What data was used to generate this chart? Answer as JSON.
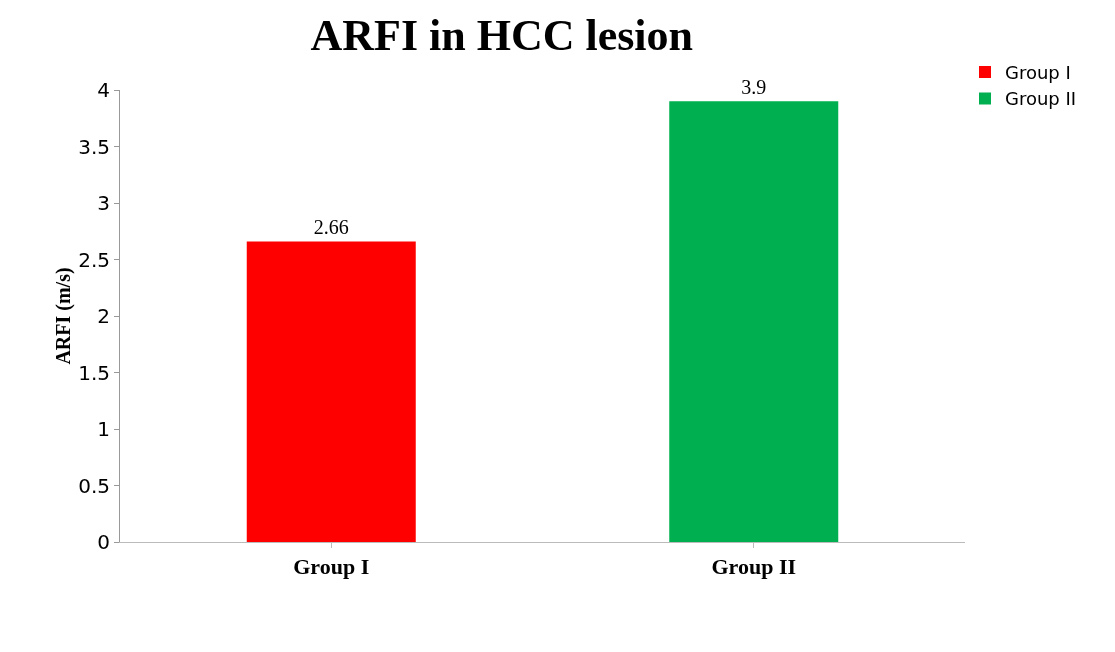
{
  "chart_data": {
    "type": "bar",
    "title": "ARFI in HCC lesion",
    "ylabel": "ARFI (m/s)",
    "categories": [
      "Group I",
      "Group II"
    ],
    "series": [
      {
        "name": "Group I",
        "color": "#ff0000",
        "values": [
          2.66,
          null
        ]
      },
      {
        "name": "Group II",
        "color": "#00b050",
        "values": [
          null,
          3.9
        ]
      }
    ],
    "ylim": [
      0,
      4
    ],
    "yticks": [
      0,
      0.5,
      1,
      1.5,
      2,
      2.5,
      3,
      3.5,
      4
    ],
    "data_labels": true,
    "grid": false,
    "legend": "top right"
  }
}
